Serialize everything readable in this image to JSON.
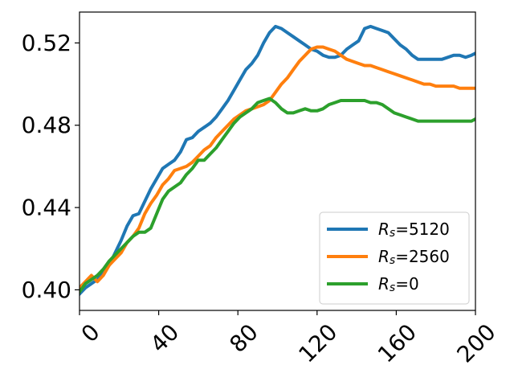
{
  "chart_data": {
    "type": "line",
    "title": "",
    "xlabel": "",
    "ylabel": "",
    "xlim": [
      0,
      200
    ],
    "ylim": [
      0.39,
      0.535
    ],
    "xticks": [
      0,
      40,
      80,
      120,
      160,
      200
    ],
    "xtick_labels": [
      "0",
      "40",
      "80",
      "120",
      "160",
      "200"
    ],
    "yticks": [
      0.4,
      0.44,
      0.48,
      0.52
    ],
    "ytick_labels": [
      "0.40",
      "0.44",
      "0.48",
      "0.52"
    ],
    "grid": false,
    "legend_position": "lower-right",
    "series": [
      {
        "name_base": "R",
        "name_sub": "s",
        "name_value": "=5120",
        "color": "#1f77b4",
        "x": [
          0,
          3,
          6,
          9,
          12,
          15,
          18,
          21,
          24,
          27,
          30,
          33,
          36,
          39,
          42,
          45,
          48,
          51,
          54,
          57,
          60,
          63,
          66,
          69,
          72,
          75,
          78,
          81,
          84,
          87,
          90,
          93,
          96,
          99,
          102,
          105,
          108,
          111,
          114,
          117,
          120,
          123,
          126,
          129,
          132,
          135,
          138,
          141,
          144,
          147,
          150,
          153,
          156,
          159,
          162,
          165,
          168,
          171,
          174,
          177,
          180,
          183,
          186,
          189,
          192,
          195,
          198,
          200
        ],
        "y": [
          0.398,
          0.401,
          0.403,
          0.405,
          0.408,
          0.412,
          0.418,
          0.424,
          0.431,
          0.436,
          0.437,
          0.443,
          0.449,
          0.454,
          0.459,
          0.461,
          0.463,
          0.467,
          0.473,
          0.474,
          0.477,
          0.479,
          0.481,
          0.484,
          0.488,
          0.492,
          0.497,
          0.502,
          0.507,
          0.51,
          0.514,
          0.52,
          0.525,
          0.528,
          0.527,
          0.525,
          0.523,
          0.521,
          0.519,
          0.517,
          0.516,
          0.514,
          0.513,
          0.513,
          0.514,
          0.517,
          0.519,
          0.521,
          0.527,
          0.528,
          0.527,
          0.526,
          0.525,
          0.522,
          0.519,
          0.517,
          0.514,
          0.512,
          0.512,
          0.512,
          0.512,
          0.512,
          0.513,
          0.514,
          0.514,
          0.513,
          0.514,
          0.515
        ]
      },
      {
        "name_base": "R",
        "name_sub": "s",
        "name_value": "=2560",
        "color": "#ff7f0e",
        "x": [
          0,
          3,
          6,
          9,
          12,
          15,
          18,
          21,
          24,
          27,
          30,
          33,
          36,
          39,
          42,
          45,
          48,
          51,
          54,
          57,
          60,
          63,
          66,
          69,
          72,
          75,
          78,
          81,
          84,
          87,
          90,
          93,
          96,
          99,
          102,
          105,
          108,
          111,
          114,
          117,
          120,
          123,
          126,
          129,
          132,
          135,
          138,
          141,
          144,
          147,
          150,
          153,
          156,
          159,
          162,
          165,
          168,
          171,
          174,
          177,
          180,
          183,
          186,
          189,
          192,
          195,
          198,
          200
        ],
        "y": [
          0.401,
          0.404,
          0.407,
          0.404,
          0.407,
          0.412,
          0.415,
          0.418,
          0.423,
          0.426,
          0.43,
          0.437,
          0.442,
          0.446,
          0.451,
          0.454,
          0.458,
          0.459,
          0.46,
          0.462,
          0.465,
          0.468,
          0.47,
          0.474,
          0.477,
          0.48,
          0.483,
          0.485,
          0.487,
          0.488,
          0.489,
          0.49,
          0.492,
          0.496,
          0.5,
          0.503,
          0.507,
          0.511,
          0.514,
          0.517,
          0.518,
          0.518,
          0.517,
          0.516,
          0.514,
          0.512,
          0.511,
          0.51,
          0.509,
          0.509,
          0.508,
          0.507,
          0.506,
          0.505,
          0.504,
          0.503,
          0.502,
          0.501,
          0.5,
          0.5,
          0.499,
          0.499,
          0.499,
          0.499,
          0.498,
          0.498,
          0.498,
          0.498
        ]
      },
      {
        "name_base": "R",
        "name_sub": "s",
        "name_value": "=0",
        "color": "#2ca02c",
        "x": [
          0,
          3,
          6,
          9,
          12,
          15,
          18,
          21,
          24,
          27,
          30,
          33,
          36,
          39,
          42,
          45,
          48,
          51,
          54,
          57,
          60,
          63,
          66,
          69,
          72,
          75,
          78,
          81,
          84,
          87,
          90,
          93,
          96,
          99,
          102,
          105,
          108,
          111,
          114,
          117,
          120,
          123,
          126,
          129,
          132,
          135,
          138,
          141,
          144,
          147,
          150,
          153,
          156,
          159,
          162,
          165,
          168,
          171,
          174,
          177,
          180,
          183,
          186,
          189,
          192,
          195,
          198,
          200
        ],
        "y": [
          0.399,
          0.403,
          0.405,
          0.407,
          0.41,
          0.414,
          0.417,
          0.42,
          0.423,
          0.426,
          0.428,
          0.428,
          0.43,
          0.437,
          0.444,
          0.448,
          0.45,
          0.452,
          0.456,
          0.459,
          0.463,
          0.463,
          0.466,
          0.469,
          0.473,
          0.477,
          0.481,
          0.484,
          0.486,
          0.488,
          0.491,
          0.492,
          0.493,
          0.491,
          0.488,
          0.486,
          0.486,
          0.487,
          0.488,
          0.487,
          0.487,
          0.488,
          0.49,
          0.491,
          0.492,
          0.492,
          0.492,
          0.492,
          0.492,
          0.491,
          0.491,
          0.49,
          0.488,
          0.486,
          0.485,
          0.484,
          0.483,
          0.482,
          0.482,
          0.482,
          0.482,
          0.482,
          0.482,
          0.482,
          0.482,
          0.482,
          0.482,
          0.483
        ]
      }
    ]
  }
}
